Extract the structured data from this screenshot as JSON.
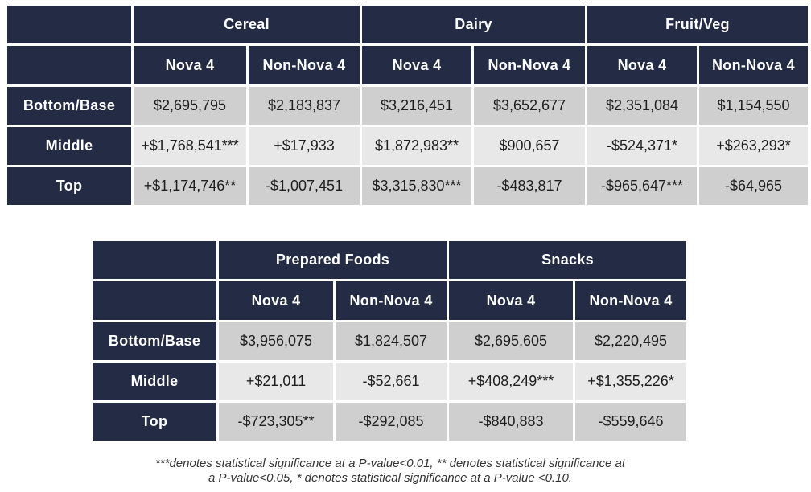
{
  "chart_data": [
    {
      "type": "table",
      "categories": [
        "Cereal",
        "Dairy",
        "Fruit/Veg"
      ],
      "columns": [
        "Nova 4",
        "Non-Nova 4"
      ],
      "rows": [
        {
          "label": "Bottom/Base",
          "cells": [
            "$2,695,795",
            "$2,183,837",
            "$3,216,451",
            "$3,652,677",
            "$2,351,084",
            "$1,154,550"
          ]
        },
        {
          "label": "Middle",
          "cells": [
            "+$1,768,541***",
            "+$17,933",
            "$1,872,983**",
            "$900,657",
            "-$524,371*",
            "+$263,293*"
          ]
        },
        {
          "label": "Top",
          "cells": [
            "+$1,174,746**",
            "-$1,007,451",
            "$3,315,830***",
            "-$483,817",
            "-$965,647***",
            "-$64,965"
          ]
        }
      ]
    },
    {
      "type": "table",
      "categories": [
        "Prepared Foods",
        "Snacks"
      ],
      "columns": [
        "Nova 4",
        "Non-Nova 4"
      ],
      "rows": [
        {
          "label": "Bottom/Base",
          "cells": [
            "$3,956,075",
            "$1,824,507",
            "$2,695,605",
            "$2,220,495"
          ]
        },
        {
          "label": "Middle",
          "cells": [
            "+$21,011",
            "-$52,661",
            "+$408,249***",
            "+$1,355,226*"
          ]
        },
        {
          "label": "Top",
          "cells": [
            "-$723,305**",
            "-$292,085",
            "-$840,883",
            "-$559,646"
          ]
        }
      ]
    }
  ],
  "footnote": {
    "line1": "***denotes statistical significance at a P-value<0.01, ** denotes statistical significance at",
    "line2": "a P-value<0.05, * denotes statistical significance at a P-value <0.10."
  },
  "colors": {
    "header": "#232b45",
    "cell_dark": "#cfcfcf",
    "cell_light": "#e8e8e8"
  }
}
